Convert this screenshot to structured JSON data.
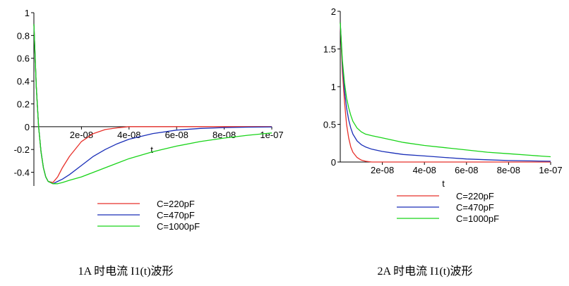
{
  "chart_data": [
    {
      "type": "line",
      "caption": "1A 时电流 I1(t)波形",
      "xlabel": "t",
      "ylabel": "",
      "xlim": [
        0,
        1e-07
      ],
      "ylim": [
        -0.52,
        1.0
      ],
      "x_ticks": [
        2e-08,
        4e-08,
        6e-08,
        8e-08,
        1e-07
      ],
      "x_tick_labels": [
        "2e-08",
        "4e-08",
        "6e-08",
        "8e-08",
        "1e-07"
      ],
      "y_ticks": [
        1,
        0.8,
        0.6,
        0.4,
        0.2,
        0,
        -0.2,
        -0.4
      ],
      "y_tick_labels": [
        "1",
        "0.8",
        "0.6",
        "0.4",
        "0.2",
        "0",
        "-0.2",
        "-0.4"
      ],
      "grid": false,
      "legend_position": "bottom",
      "x": [
        0,
        1e-09,
        2e-09,
        3e-09,
        4e-09,
        5e-09,
        6e-09,
        8e-09,
        1e-08,
        1.2e-08,
        1.5e-08,
        2e-08,
        2.5e-08,
        3e-08,
        3.5e-08,
        4e-08,
        5e-08,
        6e-08,
        7e-08,
        8e-08,
        9e-08,
        1e-07
      ],
      "series": [
        {
          "name": "C=220pF",
          "color": "#e8312b",
          "values": [
            0.9,
            0.35,
            0.0,
            -0.22,
            -0.36,
            -0.44,
            -0.48,
            -0.49,
            -0.44,
            -0.36,
            -0.26,
            -0.13,
            -0.06,
            -0.025,
            -0.01,
            0.0,
            0.0,
            0.0,
            0.0,
            0.0,
            0.0,
            0.0
          ]
        },
        {
          "name": "C=470pF",
          "color": "#1a2fb8",
          "values": [
            0.9,
            0.35,
            0.0,
            -0.22,
            -0.36,
            -0.44,
            -0.48,
            -0.5,
            -0.48,
            -0.46,
            -0.42,
            -0.34,
            -0.26,
            -0.2,
            -0.15,
            -0.11,
            -0.06,
            -0.03,
            -0.015,
            -0.008,
            -0.004,
            -0.002
          ]
        },
        {
          "name": "C=1000pF",
          "color": "#19d419",
          "values": [
            0.9,
            0.35,
            0.0,
            -0.22,
            -0.36,
            -0.44,
            -0.48,
            -0.5,
            -0.5,
            -0.49,
            -0.47,
            -0.44,
            -0.4,
            -0.36,
            -0.32,
            -0.28,
            -0.22,
            -0.17,
            -0.13,
            -0.1,
            -0.075,
            -0.055
          ]
        }
      ]
    },
    {
      "type": "line",
      "caption": "2A 时电流 I1(t)波形",
      "xlabel": "t",
      "ylabel": "",
      "xlim": [
        0,
        1e-07
      ],
      "ylim": [
        0,
        2.0
      ],
      "x_ticks": [
        2e-08,
        4e-08,
        6e-08,
        8e-08,
        1e-07
      ],
      "x_tick_labels": [
        "2e-08",
        "4e-08",
        "6e-08",
        "8e-08",
        "1e-07"
      ],
      "y_ticks": [
        2,
        1.5,
        1,
        0.5,
        0
      ],
      "y_tick_labels": [
        "2",
        "1.5",
        "1",
        "0.5",
        "0"
      ],
      "grid": false,
      "legend_position": "bottom",
      "x": [
        0,
        1e-09,
        2e-09,
        3e-09,
        4e-09,
        5e-09,
        6e-09,
        8e-09,
        1e-08,
        1.2e-08,
        1.5e-08,
        2e-08,
        2.5e-08,
        3e-08,
        4e-08,
        5e-08,
        6e-08,
        7e-08,
        8e-08,
        9e-08,
        1e-07
      ],
      "series": [
        {
          "name": "C=220pF",
          "color": "#e8312b",
          "values": [
            1.85,
            1.2,
            0.8,
            0.5,
            0.32,
            0.2,
            0.13,
            0.06,
            0.025,
            0.01,
            0.0,
            0.0,
            0.0,
            0.0,
            0.0,
            0.0,
            0.0,
            0.0,
            0.0,
            0.0,
            0.0
          ]
        },
        {
          "name": "C=470pF",
          "color": "#1a2fb8",
          "values": [
            1.85,
            1.3,
            0.95,
            0.72,
            0.56,
            0.45,
            0.37,
            0.28,
            0.23,
            0.2,
            0.17,
            0.14,
            0.12,
            0.1,
            0.08,
            0.06,
            0.04,
            0.03,
            0.02,
            0.015,
            0.01
          ]
        },
        {
          "name": "C=1000pF",
          "color": "#19d419",
          "values": [
            1.85,
            1.35,
            1.05,
            0.85,
            0.72,
            0.62,
            0.54,
            0.45,
            0.4,
            0.37,
            0.35,
            0.32,
            0.29,
            0.26,
            0.22,
            0.19,
            0.16,
            0.13,
            0.11,
            0.09,
            0.07
          ]
        }
      ]
    }
  ]
}
